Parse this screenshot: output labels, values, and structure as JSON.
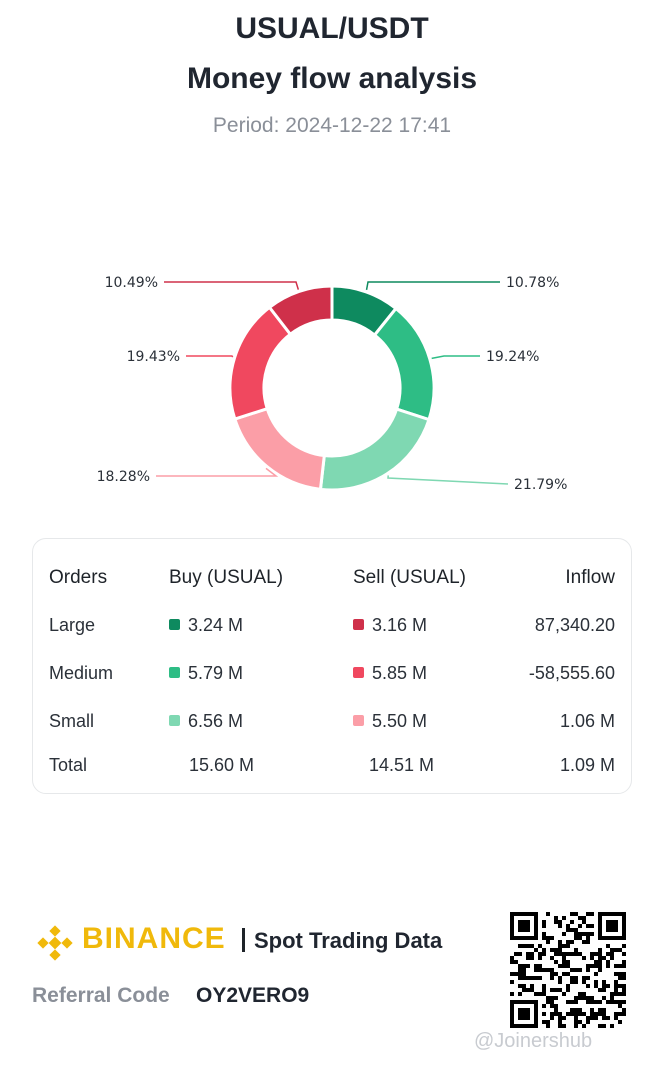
{
  "header": {
    "pair": "USUAL/USDT",
    "title": "Money flow analysis",
    "period": "Period: 2024-12-22 17:41"
  },
  "colors": {
    "buy_large": "#0e8a5f",
    "buy_medium": "#2ebd85",
    "buy_small": "#7fd8b2",
    "sell_large": "#cf304a",
    "sell_medium": "#f0485f",
    "sell_small": "#fb9ea7"
  },
  "chart_data": {
    "type": "pie",
    "categories": [
      "Buy Large",
      "Buy Medium",
      "Buy Small",
      "Sell Small",
      "Sell Medium",
      "Sell Large"
    ],
    "values": [
      10.78,
      19.24,
      21.79,
      18.28,
      19.43,
      10.49
    ],
    "labels": [
      "10.78%",
      "19.24%",
      "21.79%",
      "18.28%",
      "19.43%",
      "10.49%"
    ],
    "colors": [
      "#0e8a5f",
      "#2ebd85",
      "#7fd8b2",
      "#fb9ea7",
      "#f0485f",
      "#cf304a"
    ]
  },
  "table": {
    "headers": [
      "Orders",
      "Buy (USUAL)",
      "Sell (USUAL)",
      "Inflow"
    ],
    "rows": [
      {
        "label": "Large",
        "buy": "3.24 M",
        "sell": "3.16 M",
        "inflow": "87,340.20"
      },
      {
        "label": "Medium",
        "buy": "5.79 M",
        "sell": "5.85 M",
        "inflow": "-58,555.60"
      },
      {
        "label": "Small",
        "buy": "6.56 M",
        "sell": "5.50 M",
        "inflow": "1.06 M"
      }
    ],
    "total": {
      "label": "Total",
      "buy": "15.60 M",
      "sell": "14.51 M",
      "inflow": "1.09 M"
    }
  },
  "footer": {
    "brand": "BINANCE",
    "product": "Spot Trading Data",
    "referral_label": "Referral Code",
    "referral_code": "OY2VERO9",
    "watermark": "@Joinershub"
  }
}
